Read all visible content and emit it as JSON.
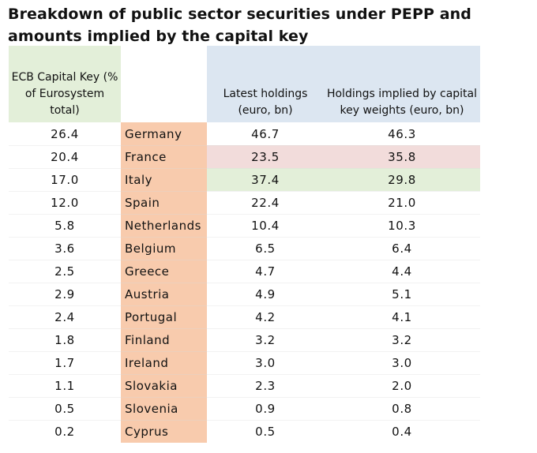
{
  "title": "Breakdown of public sector securities under PEPP and amounts implied by the capital key",
  "headers": {
    "capital_key": "ECB Capital Key (% of Eurosystem total)",
    "country": "",
    "latest": "Latest holdings (euro, bn)",
    "implied": "Holdings implied by capital key weights (euro, bn)"
  },
  "colors": {
    "green_header": "#e3efd9",
    "blue_header": "#dce6f1",
    "country_fill": "#f8cbad",
    "red_highlight": "#f2dcdb",
    "green_highlight": "#e3efd9"
  },
  "highlights": {
    "France": "red",
    "Italy": "green"
  },
  "rows": [
    {
      "key": "26.4",
      "country": "Germany",
      "latest": "46.7",
      "implied": "46.3"
    },
    {
      "key": "20.4",
      "country": "France",
      "latest": "23.5",
      "implied": "35.8"
    },
    {
      "key": "17.0",
      "country": "Italy",
      "latest": "37.4",
      "implied": "29.8"
    },
    {
      "key": "12.0",
      "country": "Spain",
      "latest": "22.4",
      "implied": "21.0"
    },
    {
      "key": "5.8",
      "country": "Netherlands",
      "latest": "10.4",
      "implied": "10.3"
    },
    {
      "key": "3.6",
      "country": "Belgium",
      "latest": "6.5",
      "implied": "6.4"
    },
    {
      "key": "2.5",
      "country": "Greece",
      "latest": "4.7",
      "implied": "4.4"
    },
    {
      "key": "2.9",
      "country": "Austria",
      "latest": "4.9",
      "implied": "5.1"
    },
    {
      "key": "2.4",
      "country": "Portugal",
      "latest": "4.2",
      "implied": "4.1"
    },
    {
      "key": "1.8",
      "country": "Finland",
      "latest": "3.2",
      "implied": "3.2"
    },
    {
      "key": "1.7",
      "country": "Ireland",
      "latest": "3.0",
      "implied": "3.0"
    },
    {
      "key": "1.1",
      "country": "Slovakia",
      "latest": "2.3",
      "implied": "2.0"
    },
    {
      "key": "0.5",
      "country": "Slovenia",
      "latest": "0.9",
      "implied": "0.8"
    },
    {
      "key": "0.2",
      "country": "Cyprus",
      "latest": "0.5",
      "implied": "0.4"
    }
  ]
}
